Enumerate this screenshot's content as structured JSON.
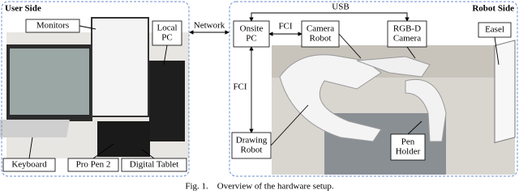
{
  "figure": {
    "user_side": {
      "title": "User Side",
      "monitors": "Monitors",
      "local_pc": [
        "Local",
        "PC"
      ],
      "keyboard": "Keyboard",
      "pro_pen": "Pro Pen 2",
      "digital_tablet": "Digital Tablet"
    },
    "network": "Network",
    "robot_side": {
      "title": "Robot Side",
      "usb": "USB",
      "fci_top": "FCI",
      "fci_left": "FCI",
      "onsite_pc": [
        "Onsite",
        "PC"
      ],
      "camera_robot": [
        "Camera",
        "Robot"
      ],
      "rgbd_camera": [
        "RGB-D",
        "Camera"
      ],
      "easel": "Easel",
      "drawing_robot": [
        "Drawing",
        "Robot"
      ],
      "pen_holder": [
        "Pen",
        "Holder"
      ]
    },
    "caption": "Fig. 1.    Overview of the hardware setup."
  }
}
